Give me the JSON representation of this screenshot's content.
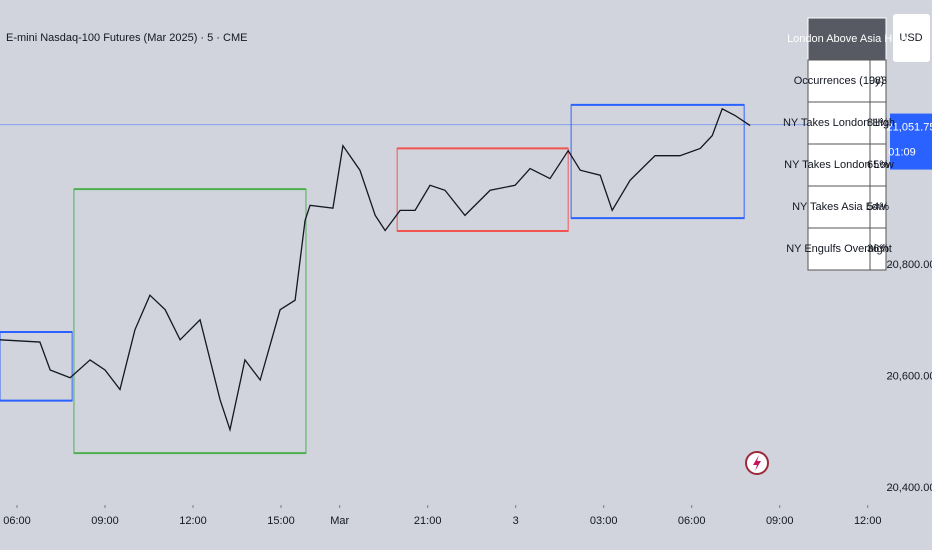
{
  "chart_data": {
    "type": "line",
    "title": "E-mini Nasdaq-100 Futures (Mar 2025) · 5 · CME",
    "currency": "USD",
    "x": [
      -0.58,
      0.78,
      1.13,
      1.81,
      2.49,
      3.0,
      3.51,
      4.02,
      4.53,
      5.05,
      5.56,
      6.24,
      6.92,
      7.26,
      7.77,
      8.29,
      8.97,
      9.48,
      9.82,
      9.99,
      10.77,
      11.11,
      11.69,
      12.21,
      12.55,
      13.06,
      13.57,
      14.08,
      14.59,
      15.27,
      16.13,
      16.98,
      17.49,
      18.17,
      18.79,
      19.2,
      19.88,
      20.29,
      20.9,
      21.75,
      22.6,
      23.29,
      23.7,
      24.04,
      24.48,
      24.99
    ],
    "values": [
      20666,
      20662,
      20612,
      20598,
      20630,
      20612,
      20577,
      20684,
      20746,
      20720,
      20666,
      20702,
      20559,
      20505,
      20630,
      20594,
      20720,
      20737,
      20880,
      20907,
      20902,
      21014,
      20970,
      20889,
      20862,
      20898,
      20898,
      20943,
      20934,
      20889,
      20934,
      20943,
      20973,
      20955,
      21005,
      20970,
      20961,
      20898,
      20952,
      20996,
      20996,
      21009,
      21032,
      21080,
      21068,
      21050
    ],
    "color": "#131722",
    "xlim": [
      -0.58,
      29.76
    ],
    "ylim": [
      20370,
      21275
    ],
    "xticks": [
      {
        "value": 0,
        "label": "06:00"
      },
      {
        "value": 3,
        "label": "09:00"
      },
      {
        "value": 6,
        "label": "12:00"
      },
      {
        "value": 9,
        "label": "15:00"
      },
      {
        "value": 11,
        "label": "Mar"
      },
      {
        "value": 14,
        "label": "21:00"
      },
      {
        "value": 17,
        "label": "3"
      },
      {
        "value": 20,
        "label": "03:00"
      },
      {
        "value": 23,
        "label": "06:00"
      },
      {
        "value": 26,
        "label": "09:00"
      },
      {
        "value": 29,
        "label": "12:00"
      }
    ],
    "yticks": [
      {
        "value": 20800,
        "label": "20,800.00"
      },
      {
        "value": 20600,
        "label": "20,600.00"
      },
      {
        "value": 20400,
        "label": "20,400.00"
      }
    ],
    "sessions": [
      {
        "start": -0.58,
        "end": 1.88,
        "high": 20680,
        "low": 20557,
        "color": "#2962ff"
      },
      {
        "start": 1.94,
        "end": 9.85,
        "high": 20936,
        "low": 20463,
        "color": "#4caf50"
      },
      {
        "start": 12.96,
        "end": 18.79,
        "high": 21009,
        "low": 20861,
        "color": "#f05350"
      },
      {
        "start": 18.89,
        "end": 24.79,
        "high": 21087,
        "low": 20884,
        "color": "#2962ff"
      }
    ],
    "last": {
      "value": 21051.75,
      "label": "21,051.75"
    },
    "countdown": "01:09"
  },
  "stats_table": {
    "header": "London Above Asia High",
    "rows": [
      [
        "Occurrences (10y)",
        "983"
      ],
      [
        "NY Takes London High",
        "81%"
      ],
      [
        "NY Takes London Low",
        "65%"
      ],
      [
        "NY Takes Asia Low",
        "54%"
      ],
      [
        "NY Engulfs Overnight",
        "36%"
      ]
    ]
  }
}
